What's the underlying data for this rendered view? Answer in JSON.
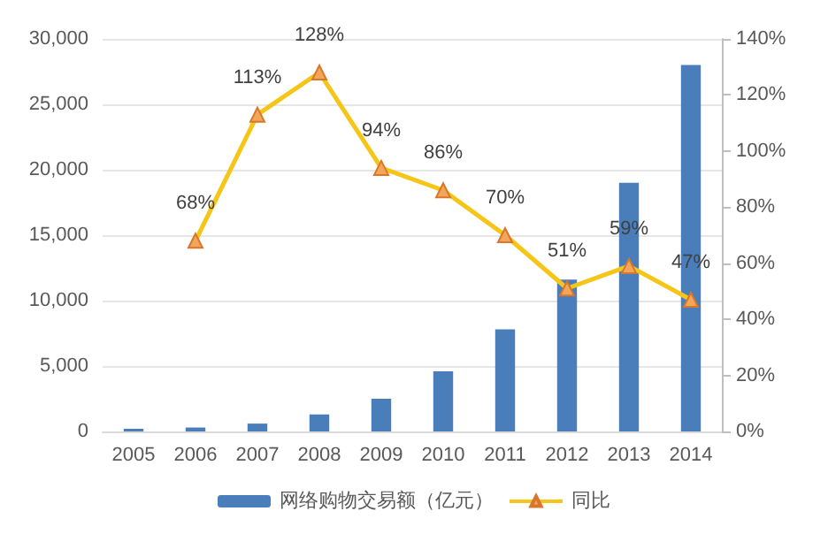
{
  "chart_data": {
    "type": "bar",
    "categories": [
      "2005",
      "2006",
      "2007",
      "2008",
      "2009",
      "2010",
      "2011",
      "2012",
      "2013",
      "2014"
    ],
    "series": [
      {
        "name": "网络购物交易额（亿元）",
        "color": "#4a7ebb",
        "values": [
          200,
          300,
          600,
          1300,
          2500,
          4600,
          7800,
          11600,
          19000,
          28000
        ]
      },
      {
        "name": "同比",
        "type": "line",
        "axis": "y2",
        "color": "#f5c518",
        "marker": "triangle",
        "values": [
          null,
          68,
          113,
          128,
          94,
          86,
          70,
          51,
          59,
          47
        ],
        "value_labels": [
          null,
          "68%",
          "113%",
          "128%",
          "94%",
          "86%",
          "70%",
          "51%",
          "59%",
          "47%"
        ]
      }
    ],
    "ylim": [
      0,
      30000
    ],
    "yticks": [
      {
        "value": 0,
        "label": "0"
      },
      {
        "value": 5000,
        "label": "5,000"
      },
      {
        "value": 10000,
        "label": "10,000"
      },
      {
        "value": 15000,
        "label": "15,000"
      },
      {
        "value": 20000,
        "label": "20,000"
      },
      {
        "value": 25000,
        "label": "25,000"
      },
      {
        "value": 30000,
        "label": "30,000"
      }
    ],
    "y2lim": [
      0,
      140
    ],
    "y2ticks": [
      {
        "value": 0,
        "label": "0%"
      },
      {
        "value": 20,
        "label": "20%"
      },
      {
        "value": 40,
        "label": "40%"
      },
      {
        "value": 60,
        "label": "60%"
      },
      {
        "value": 80,
        "label": "80%"
      },
      {
        "value": 100,
        "label": "100%"
      },
      {
        "value": 120,
        "label": "120%"
      },
      {
        "value": 140,
        "label": "140%"
      }
    ],
    "grid": "y",
    "legend": "bottom"
  }
}
